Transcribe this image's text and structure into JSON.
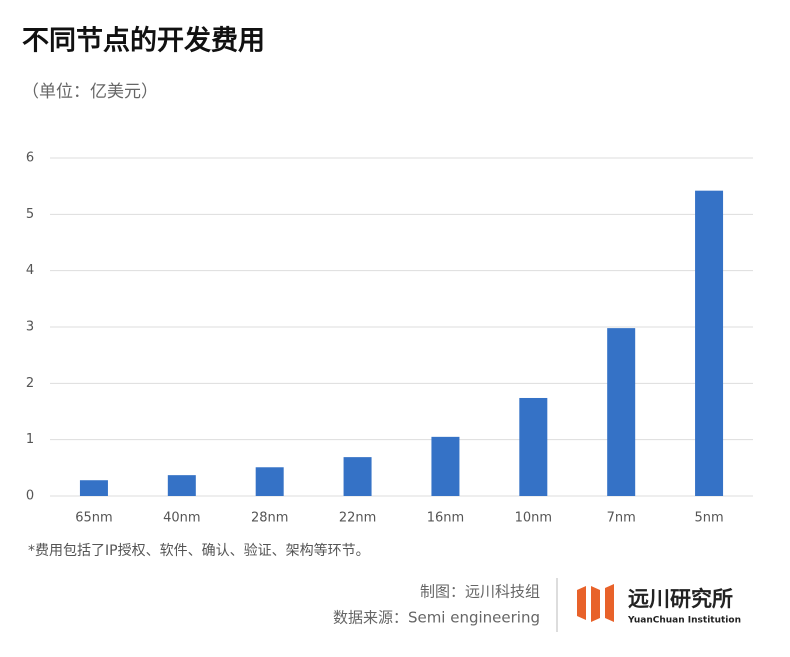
{
  "chart_data": {
    "type": "bar",
    "title": "不同节点的开发费用",
    "subtitle": "（单位：亿美元）",
    "categories": [
      "65nm",
      "40nm",
      "28nm",
      "22nm",
      "16nm",
      "10nm",
      "7nm",
      "5nm"
    ],
    "values": [
      0.28,
      0.37,
      0.51,
      0.69,
      1.05,
      1.74,
      2.98,
      5.42
    ],
    "color": "#3572c6",
    "ylim": [
      0,
      6
    ],
    "yticks": [
      0,
      1,
      2,
      3,
      4,
      5,
      6
    ],
    "grid": true,
    "footnote": "*费用包括了IP授权、软件、确认、验证、架构等环节。",
    "credit": "制图：远川科技组",
    "source": "数据来源：Semi engineering",
    "logo_name": "远川研究所",
    "logo_subtitle": "YuanChuan Institution"
  }
}
